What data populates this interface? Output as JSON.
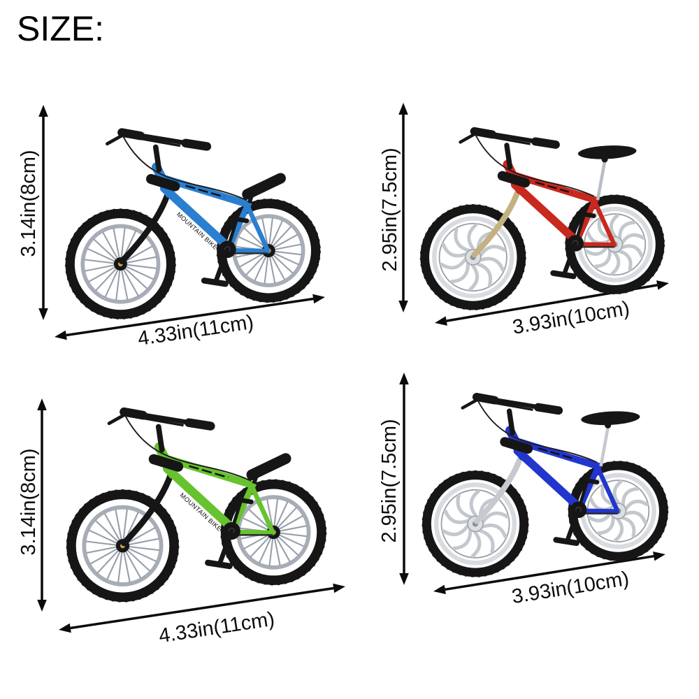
{
  "title": "SIZE:",
  "bikes": [
    {
      "id": "blue-spoked",
      "position": "top-left",
      "height_label": "3.14in(8cm)",
      "width_label": "4.33in(11cm)",
      "frame_color": "#2a7fd0",
      "fork_color": "#161616",
      "rim_color": "#a7adb6",
      "spoke_color": "#98a0aa",
      "post_color": "#161616",
      "wheel_style": "spoked",
      "frame_text": "MOUNTAIN BIKE"
    },
    {
      "id": "red-chrome",
      "position": "top-right",
      "height_label": "2.95in(7.5cm)",
      "width_label": "3.93in(10cm)",
      "frame_color": "#c8281e",
      "fork_color": "#c4b183",
      "rim_color": "#d8dbdf",
      "spoke_color": "#c3c8ce",
      "post_color": "#b9bec4",
      "wheel_style": "chrome",
      "frame_text": ""
    },
    {
      "id": "green-spoked",
      "position": "bottom-left",
      "height_label": "3.14in(8cm)",
      "width_label": "4.33in(11cm)",
      "frame_color": "#66c32e",
      "fork_color": "#161616",
      "rim_color": "#a7adb6",
      "spoke_color": "#98a0aa",
      "post_color": "#161616",
      "wheel_style": "spoked",
      "frame_text": "MOUNTAIN BIKE"
    },
    {
      "id": "blue-chrome",
      "position": "bottom-right",
      "height_label": "2.95in(7.5cm)",
      "width_label": "3.93in(10cm)",
      "frame_color": "#2236cd",
      "fork_color": "#c6cacf",
      "rim_color": "#d8dbdf",
      "spoke_color": "#c3c8ce",
      "post_color": "#c6cacf",
      "wheel_style": "chrome",
      "frame_text": ""
    }
  ],
  "arrow_color": "#0b0b0b"
}
